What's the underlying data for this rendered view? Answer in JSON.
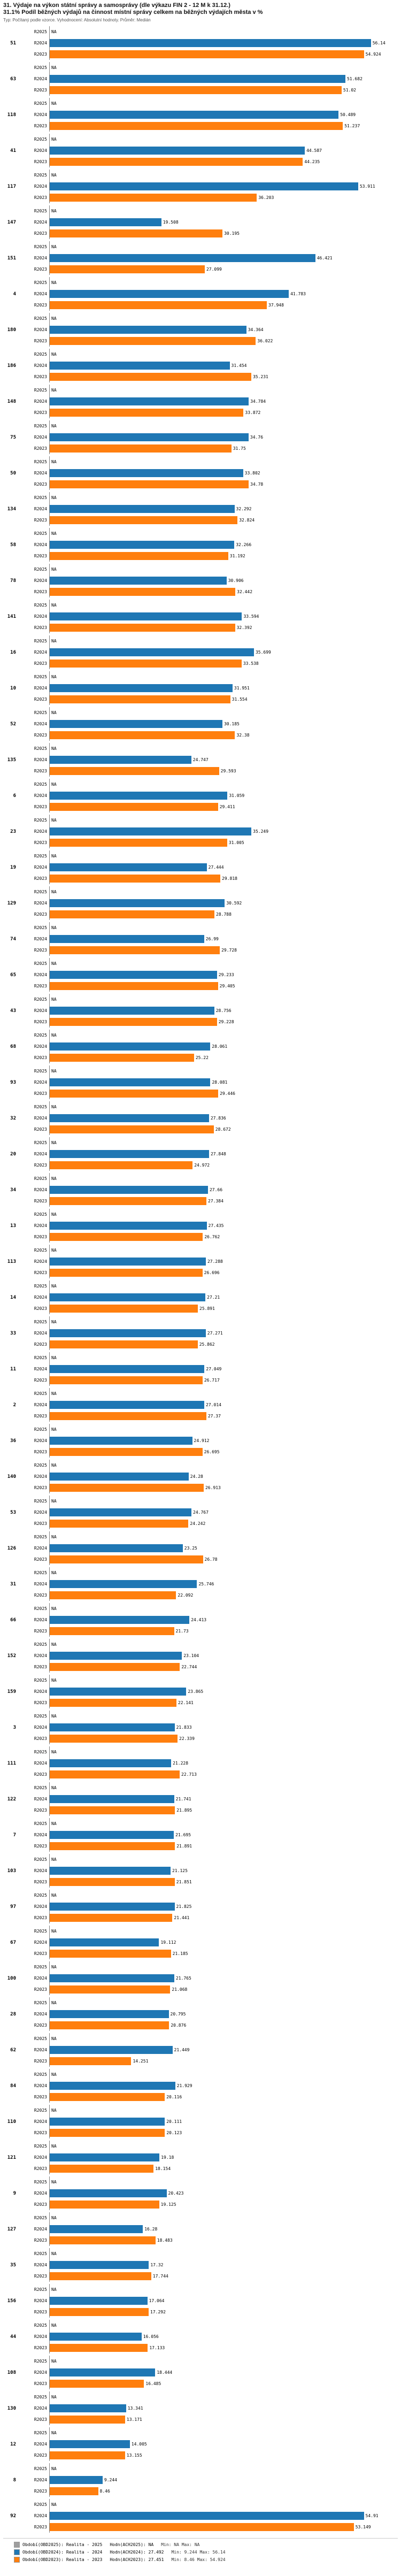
{
  "chart_data": {
    "type": "bar",
    "orientation": "horizontal",
    "title": "31. Výdaje na výkon státní správy a samosprávy (dle výkazu FIN 2 - 12 M k 31.12.)",
    "subtitle": "31.1% Podíl běžných výdajů na činnost místní správy celkem na běžných výdajích města v %",
    "note": "Typ: Počítaný podle vzorce. Vyhodnocení: Absolutní hodnoty. Průměr: Medián",
    "xlim": [
      0,
      60
    ],
    "na_text": "NA",
    "series": [
      {
        "name": "R2025",
        "color": "#9e9e9e"
      },
      {
        "name": "R2024",
        "color": "#1f77b4"
      },
      {
        "name": "R2023",
        "color": "#ff7f0e"
      }
    ],
    "groups": [
      {
        "label": "51",
        "values": [
          null,
          56.14,
          54.924
        ]
      },
      {
        "label": "63",
        "values": [
          null,
          51.682,
          51.02
        ]
      },
      {
        "label": "118",
        "values": [
          null,
          50.489,
          51.237
        ]
      },
      {
        "label": "41",
        "values": [
          null,
          44.587,
          44.235
        ]
      },
      {
        "label": "117",
        "values": [
          null,
          53.911,
          36.203
        ]
      },
      {
        "label": "147",
        "values": [
          null,
          19.508,
          30.195
        ]
      },
      {
        "label": "151",
        "values": [
          null,
          46.421,
          27.099
        ]
      },
      {
        "label": "4",
        "values": [
          null,
          41.783,
          37.948
        ]
      },
      {
        "label": "180",
        "values": [
          null,
          34.364,
          36.022
        ]
      },
      {
        "label": "186",
        "values": [
          null,
          31.454,
          35.231
        ]
      },
      {
        "label": "148",
        "values": [
          null,
          34.784,
          33.872
        ]
      },
      {
        "label": "75",
        "values": [
          null,
          34.76,
          31.75
        ]
      },
      {
        "label": "50",
        "values": [
          null,
          33.802,
          34.78
        ]
      },
      {
        "label": "134",
        "values": [
          null,
          32.292,
          32.824
        ]
      },
      {
        "label": "58",
        "values": [
          null,
          32.266,
          31.192
        ]
      },
      {
        "label": "78",
        "values": [
          null,
          30.906,
          32.442
        ]
      },
      {
        "label": "141",
        "values": [
          null,
          33.594,
          32.392
        ]
      },
      {
        "label": "16",
        "values": [
          null,
          35.699,
          33.538
        ]
      },
      {
        "label": "10",
        "values": [
          null,
          31.951,
          31.554
        ]
      },
      {
        "label": "52",
        "values": [
          null,
          30.185,
          32.38
        ]
      },
      {
        "label": "135",
        "values": [
          null,
          24.747,
          29.593
        ]
      },
      {
        "label": "6",
        "values": [
          null,
          31.059,
          29.411
        ]
      },
      {
        "label": "23",
        "values": [
          null,
          35.249,
          31.005
        ]
      },
      {
        "label": "19",
        "values": [
          null,
          27.444,
          29.818
        ]
      },
      {
        "label": "129",
        "values": [
          null,
          30.592,
          28.788
        ]
      },
      {
        "label": "74",
        "values": [
          null,
          26.99,
          29.728
        ]
      },
      {
        "label": "65",
        "values": [
          null,
          29.233,
          29.405
        ]
      },
      {
        "label": "43",
        "values": [
          null,
          28.756,
          29.228
        ]
      },
      {
        "label": "68",
        "values": [
          null,
          28.061,
          25.22
        ]
      },
      {
        "label": "93",
        "values": [
          null,
          28.081,
          29.446
        ]
      },
      {
        "label": "32",
        "values": [
          null,
          27.836,
          28.672
        ]
      },
      {
        "label": "20",
        "values": [
          null,
          27.848,
          24.972
        ]
      },
      {
        "label": "34",
        "values": [
          null,
          27.66,
          27.384
        ]
      },
      {
        "label": "13",
        "values": [
          null,
          27.435,
          26.762
        ]
      },
      {
        "label": "113",
        "values": [
          null,
          27.288,
          26.696
        ]
      },
      {
        "label": "14",
        "values": [
          null,
          27.21,
          25.891
        ]
      },
      {
        "label": "33",
        "values": [
          null,
          27.271,
          25.862
        ]
      },
      {
        "label": "11",
        "values": [
          null,
          27.049,
          26.717
        ]
      },
      {
        "label": "2",
        "values": [
          null,
          27.014,
          27.37
        ]
      },
      {
        "label": "36",
        "values": [
          null,
          24.912,
          26.695
        ]
      },
      {
        "label": "140",
        "values": [
          null,
          24.28,
          26.913
        ]
      },
      {
        "label": "53",
        "values": [
          null,
          24.767,
          24.242
        ]
      },
      {
        "label": "126",
        "values": [
          null,
          23.25,
          26.78
        ]
      },
      {
        "label": "31",
        "values": [
          null,
          25.746,
          22.092
        ]
      },
      {
        "label": "66",
        "values": [
          null,
          24.413,
          21.73
        ]
      },
      {
        "label": "152",
        "values": [
          null,
          23.104,
          22.744
        ]
      },
      {
        "label": "159",
        "values": [
          null,
          23.865,
          22.141
        ]
      },
      {
        "label": "3",
        "values": [
          null,
          21.833,
          22.339
        ]
      },
      {
        "label": "111",
        "values": [
          null,
          21.228,
          22.713
        ]
      },
      {
        "label": "122",
        "values": [
          null,
          21.741,
          21.895
        ]
      },
      {
        "label": "7",
        "values": [
          null,
          21.695,
          21.891
        ]
      },
      {
        "label": "103",
        "values": [
          null,
          21.125,
          21.851
        ]
      },
      {
        "label": "97",
        "values": [
          null,
          21.825,
          21.441
        ]
      },
      {
        "label": "67",
        "values": [
          null,
          19.112,
          21.185
        ]
      },
      {
        "label": "100",
        "values": [
          null,
          21.765,
          21.068
        ]
      },
      {
        "label": "28",
        "values": [
          null,
          20.795,
          20.876
        ]
      },
      {
        "label": "62",
        "values": [
          null,
          21.449,
          14.251
        ]
      },
      {
        "label": "84",
        "values": [
          null,
          21.929,
          20.116
        ]
      },
      {
        "label": "110",
        "values": [
          null,
          20.111,
          20.123
        ]
      },
      {
        "label": "121",
        "values": [
          null,
          19.18,
          18.154
        ]
      },
      {
        "label": "9",
        "values": [
          null,
          20.423,
          19.125
        ]
      },
      {
        "label": "127",
        "values": [
          null,
          16.28,
          18.483
        ]
      },
      {
        "label": "35",
        "values": [
          null,
          17.32,
          17.744
        ]
      },
      {
        "label": "156",
        "values": [
          null,
          17.064,
          17.292
        ]
      },
      {
        "label": "44",
        "values": [
          null,
          16.056,
          17.133
        ]
      },
      {
        "label": "108",
        "values": [
          null,
          18.444,
          16.485
        ]
      },
      {
        "label": "130",
        "values": [
          null,
          13.341,
          13.171
        ]
      },
      {
        "label": "12",
        "values": [
          null,
          14.005,
          13.155
        ]
      },
      {
        "label": "8",
        "values": [
          null,
          9.244,
          8.46
        ]
      },
      {
        "label": "92",
        "values": [
          null,
          54.91,
          53.149
        ]
      }
    ],
    "legend": {
      "entries": [
        {
          "label": "Období(OBD2025): Realita - 2025",
          "color": "#9e9e9e",
          "hodn": "Hodn(ACH2025): NA",
          "stats": "Min: NA      Max: NA"
        },
        {
          "label": "Období(OBD2024): Realita - 2024",
          "color": "#1f77b4",
          "hodn": "Hodn(ACH2024): 27.492",
          "stats": "Min: 9.244   Max: 56.14"
        },
        {
          "label": "Období(OBD2023): Realita - 2023",
          "color": "#ff7f0e",
          "hodn": "Hodn(ACH2023): 27.451",
          "stats": "Min: 8.46    Max: 54.924"
        }
      ]
    }
  }
}
